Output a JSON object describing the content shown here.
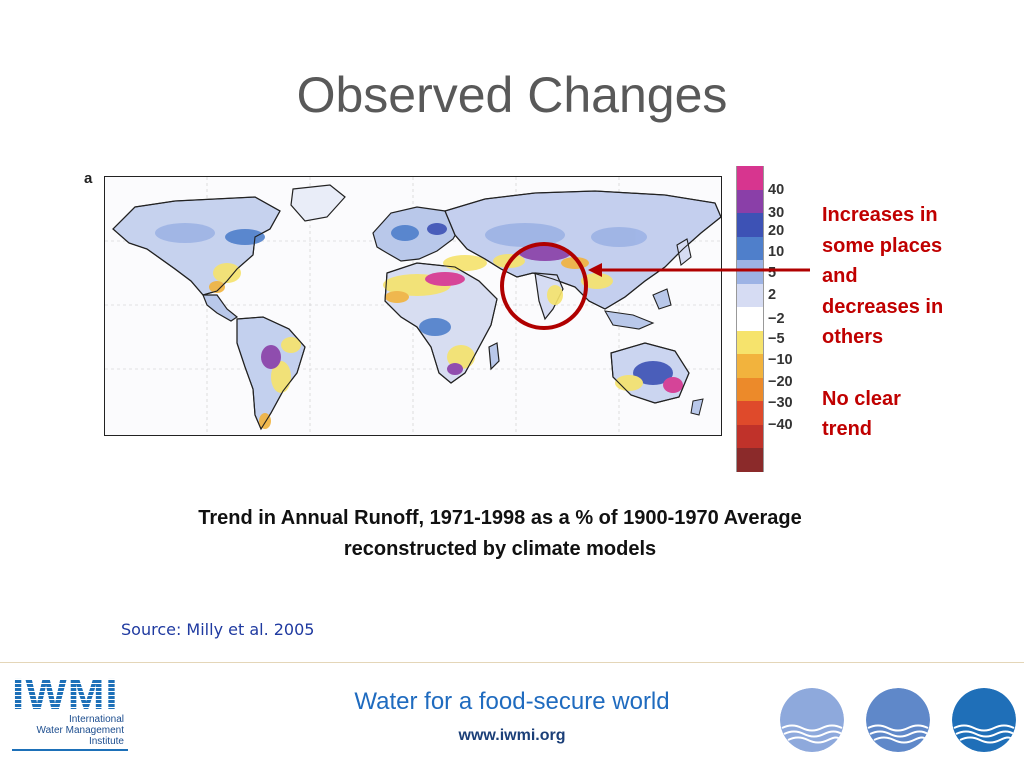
{
  "slide": {
    "title": "Observed Changes"
  },
  "figure": {
    "panel_letter": "a",
    "legend": {
      "labels": [
        "40",
        "30",
        "20",
        "10",
        "5",
        "2",
        "−2",
        "−5",
        "−10",
        "−20",
        "−30",
        "−40"
      ],
      "colors": [
        "#d7358f",
        "#8a3fa8",
        "#3d52b5",
        "#4f7fcb",
        "#9db3e5",
        "#d6dcf3",
        "#ffffff",
        "#f6e36c",
        "#f2b33d",
        "#ec8a2a",
        "#df4a2b",
        "#c0322a",
        "#8b2a2a"
      ]
    }
  },
  "annotation": {
    "lines": [
      "Increases in",
      "some places",
      "and",
      "decreases in",
      "others"
    ],
    "conclusion": [
      "No clear",
      "trend"
    ],
    "color": "#c00000"
  },
  "caption": {
    "line1": "Trend in Annual Runoff, 1971-1998 as a % of 1900-1970 Average",
    "line2": "reconstructed by climate models"
  },
  "source": {
    "text": "Source:  Milly et al. 2005"
  },
  "footer": {
    "logo_mark": "IWMI",
    "logo_lines": [
      "International",
      "Water Management",
      "Institute"
    ],
    "tagline": "Water for a food-secure world",
    "website": "www.iwmi.org",
    "drop_colors": [
      "#8ea9dc",
      "#5f88c9",
      "#1f6fb8"
    ]
  }
}
